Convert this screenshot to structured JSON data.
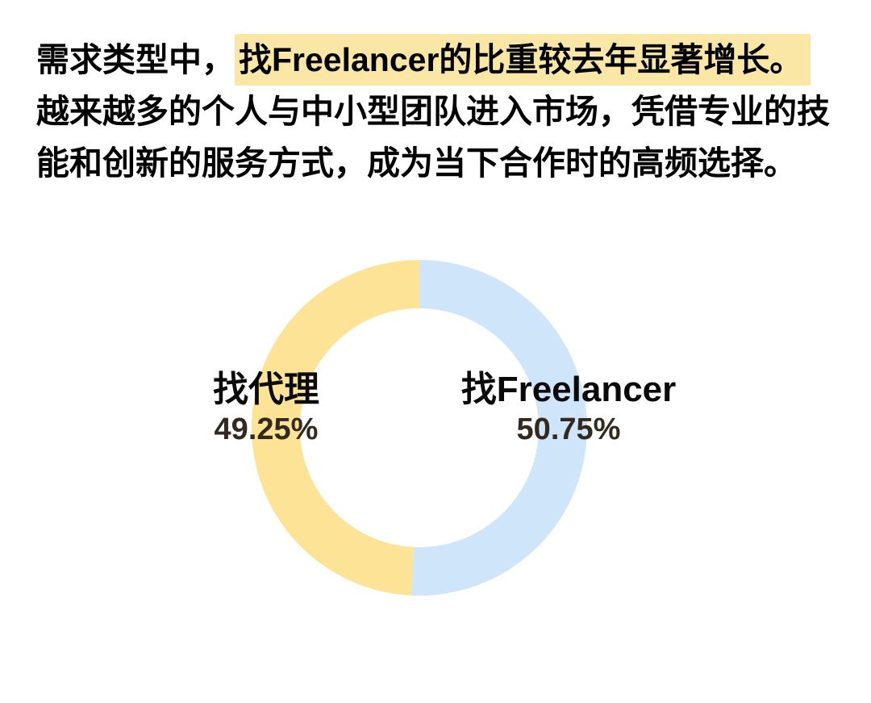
{
  "intro": {
    "line1_prefix": "需求类型中，",
    "line1_highlight": "找Freelancer的比重较去年显著增长。",
    "line2": "越来越多的个人与中小型团队进入市场，凭借专业的技",
    "line3": "能和创新的服务方式，成为当下合作时的高频选择。",
    "text_color": "#000000",
    "highlight_color": "#FAE7A6"
  },
  "chart_data": {
    "type": "pie",
    "subtype": "donut",
    "title": "",
    "direction": "clockwise",
    "start_angle_deg": 0,
    "legend_position": "overlay-on-ring",
    "categories": [
      "找Freelancer",
      "找代理"
    ],
    "values": [
      50.75,
      49.25
    ],
    "segments": [
      {
        "label": "找Freelancer",
        "value": 50.75,
        "display_percent": "50.75%",
        "color": "#CFE6FA"
      },
      {
        "label": "找代理",
        "value": 49.25,
        "display_percent": "49.25%",
        "color": "#FDE395"
      }
    ],
    "percent_text_color": "#33291f",
    "label_text_color": "#0a0a0a"
  }
}
